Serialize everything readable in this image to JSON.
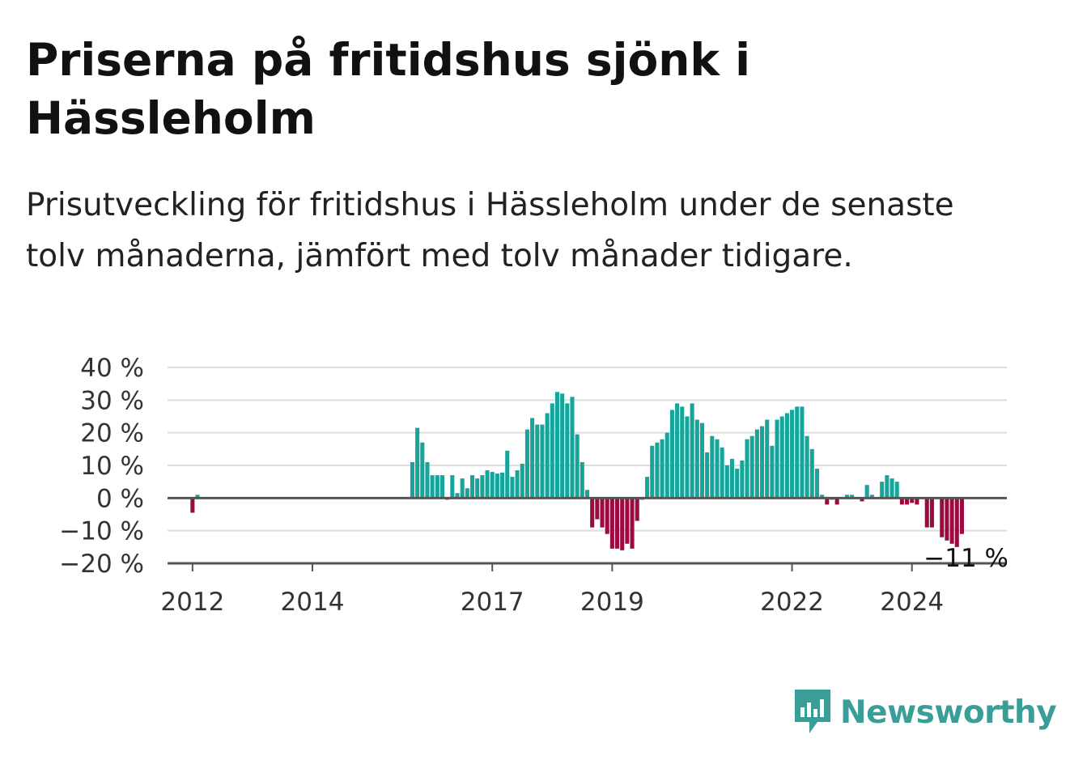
{
  "title": "Priserna på fritidshus sjönk i Hässleholm",
  "subtitle": "Prisutveckling för fritidshus i Hässleholm under de senaste tolv månaderna, jämfört med tolv månader tidigare.",
  "brand": {
    "name": "Newsworthy",
    "icon": "newsworthy-logo-icon",
    "color": "#3a9e98"
  },
  "colors": {
    "positive": "#15a59b",
    "negative": "#9b0a41",
    "grid": "#dddddd",
    "zero": "#555555"
  },
  "chart_data": {
    "type": "bar",
    "title": "Priserna på fritidshus sjönk i Hässleholm",
    "ylim": [
      -20,
      40
    ],
    "y_ticks": [
      {
        "value": 40,
        "label": "40 %"
      },
      {
        "value": 30,
        "label": "30 %"
      },
      {
        "value": 20,
        "label": "20 %"
      },
      {
        "value": 10,
        "label": "10 %"
      },
      {
        "value": 0,
        "label": "0 %"
      },
      {
        "value": -10,
        "label": "−10 %"
      },
      {
        "value": -20,
        "label": "−20 %"
      }
    ],
    "x_range": [
      "2011-08",
      "2025-08"
    ],
    "x_ticks": [
      {
        "date": "2012-01",
        "label": "2012"
      },
      {
        "date": "2014-01",
        "label": "2014"
      },
      {
        "date": "2017-01",
        "label": "2017"
      },
      {
        "date": "2019-01",
        "label": "2019"
      },
      {
        "date": "2022-01",
        "label": "2022"
      },
      {
        "date": "2024-01",
        "label": "2024"
      }
    ],
    "grid": true,
    "end_label": "−11 %",
    "series": [
      {
        "values": [
          {
            "x": "2012-01",
            "y": -4.5
          },
          {
            "x": "2012-02",
            "y": 1
          },
          {
            "x": "2015-09",
            "y": 11
          },
          {
            "x": "2015-10",
            "y": 21.5
          },
          {
            "x": "2015-11",
            "y": 17
          },
          {
            "x": "2015-12",
            "y": 11
          },
          {
            "x": "2016-01",
            "y": 7
          },
          {
            "x": "2016-02",
            "y": 7
          },
          {
            "x": "2016-03",
            "y": 7
          },
          {
            "x": "2016-04",
            "y": -0.5
          },
          {
            "x": "2016-05",
            "y": 7
          },
          {
            "x": "2016-06",
            "y": 1.5
          },
          {
            "x": "2016-07",
            "y": 6
          },
          {
            "x": "2016-08",
            "y": 3
          },
          {
            "x": "2016-09",
            "y": 7
          },
          {
            "x": "2016-10",
            "y": 6
          },
          {
            "x": "2016-11",
            "y": 7
          },
          {
            "x": "2016-12",
            "y": 8.5
          },
          {
            "x": "2017-01",
            "y": 8
          },
          {
            "x": "2017-02",
            "y": 7.5
          },
          {
            "x": "2017-03",
            "y": 7.8
          },
          {
            "x": "2017-04",
            "y": 14.5
          },
          {
            "x": "2017-05",
            "y": 6.5
          },
          {
            "x": "2017-06",
            "y": 8.5
          },
          {
            "x": "2017-07",
            "y": 10.5
          },
          {
            "x": "2017-08",
            "y": 21
          },
          {
            "x": "2017-09",
            "y": 24.5
          },
          {
            "x": "2017-10",
            "y": 22.5
          },
          {
            "x": "2017-11",
            "y": 22.5
          },
          {
            "x": "2017-12",
            "y": 26
          },
          {
            "x": "2018-01",
            "y": 29
          },
          {
            "x": "2018-02",
            "y": 32.5
          },
          {
            "x": "2018-03",
            "y": 32
          },
          {
            "x": "2018-04",
            "y": 29
          },
          {
            "x": "2018-05",
            "y": 31
          },
          {
            "x": "2018-06",
            "y": 19.5
          },
          {
            "x": "2018-07",
            "y": 11
          },
          {
            "x": "2018-08",
            "y": 2.5
          },
          {
            "x": "2018-09",
            "y": -9
          },
          {
            "x": "2018-10",
            "y": -6.5
          },
          {
            "x": "2018-11",
            "y": -9
          },
          {
            "x": "2018-12",
            "y": -11
          },
          {
            "x": "2019-01",
            "y": -15.5
          },
          {
            "x": "2019-02",
            "y": -15.5
          },
          {
            "x": "2019-03",
            "y": -16
          },
          {
            "x": "2019-04",
            "y": -14
          },
          {
            "x": "2019-05",
            "y": -15.5
          },
          {
            "x": "2019-06",
            "y": -7
          },
          {
            "x": "2019-07",
            "y": -0.5
          },
          {
            "x": "2019-08",
            "y": 6.5
          },
          {
            "x": "2019-09",
            "y": 16
          },
          {
            "x": "2019-10",
            "y": 17
          },
          {
            "x": "2019-11",
            "y": 18
          },
          {
            "x": "2019-12",
            "y": 20
          },
          {
            "x": "2020-01",
            "y": 27
          },
          {
            "x": "2020-02",
            "y": 29
          },
          {
            "x": "2020-03",
            "y": 28
          },
          {
            "x": "2020-04",
            "y": 25
          },
          {
            "x": "2020-05",
            "y": 29
          },
          {
            "x": "2020-06",
            "y": 24
          },
          {
            "x": "2020-07",
            "y": 23
          },
          {
            "x": "2020-08",
            "y": 14
          },
          {
            "x": "2020-09",
            "y": 19
          },
          {
            "x": "2020-10",
            "y": 18
          },
          {
            "x": "2020-11",
            "y": 15.5
          },
          {
            "x": "2020-12",
            "y": 10
          },
          {
            "x": "2021-01",
            "y": 12
          },
          {
            "x": "2021-02",
            "y": 9
          },
          {
            "x": "2021-03",
            "y": 11.5
          },
          {
            "x": "2021-04",
            "y": 18
          },
          {
            "x": "2021-05",
            "y": 19
          },
          {
            "x": "2021-06",
            "y": 21
          },
          {
            "x": "2021-07",
            "y": 22
          },
          {
            "x": "2021-08",
            "y": 24
          },
          {
            "x": "2021-09",
            "y": 16
          },
          {
            "x": "2021-10",
            "y": 24
          },
          {
            "x": "2021-11",
            "y": 25
          },
          {
            "x": "2021-12",
            "y": 26
          },
          {
            "x": "2022-01",
            "y": 27
          },
          {
            "x": "2022-02",
            "y": 28
          },
          {
            "x": "2022-03",
            "y": 28
          },
          {
            "x": "2022-04",
            "y": 19
          },
          {
            "x": "2022-05",
            "y": 15
          },
          {
            "x": "2022-06",
            "y": 9
          },
          {
            "x": "2022-07",
            "y": 1
          },
          {
            "x": "2022-08",
            "y": -2
          },
          {
            "x": "2022-09",
            "y": -0.5
          },
          {
            "x": "2022-10",
            "y": -2
          },
          {
            "x": "2022-12",
            "y": 1
          },
          {
            "x": "2023-01",
            "y": 1
          },
          {
            "x": "2023-03",
            "y": -1
          },
          {
            "x": "2023-04",
            "y": 4
          },
          {
            "x": "2023-05",
            "y": 1
          },
          {
            "x": "2023-07",
            "y": 5
          },
          {
            "x": "2023-08",
            "y": 7
          },
          {
            "x": "2023-09",
            "y": 6
          },
          {
            "x": "2023-10",
            "y": 5
          },
          {
            "x": "2023-11",
            "y": -2
          },
          {
            "x": "2023-12",
            "y": -2
          },
          {
            "x": "2024-01",
            "y": -1.5
          },
          {
            "x": "2024-02",
            "y": -2
          },
          {
            "x": "2024-04",
            "y": -9
          },
          {
            "x": "2024-05",
            "y": -9
          },
          {
            "x": "2024-07",
            "y": -12
          },
          {
            "x": "2024-08",
            "y": -13
          },
          {
            "x": "2024-09",
            "y": -14
          },
          {
            "x": "2024-10",
            "y": -15
          },
          {
            "x": "2024-11",
            "y": -11
          }
        ]
      }
    ]
  }
}
